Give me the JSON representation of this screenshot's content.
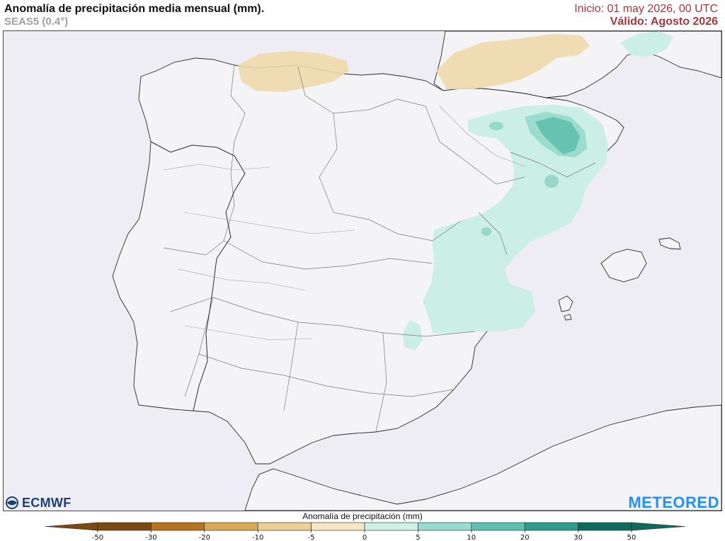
{
  "header": {
    "title": "Anomalía de precipitación media mensual (mm).",
    "subtitle": "SEAS5 (0.4°)",
    "init": "Inicio: 01 may 2026, 00 UTC",
    "valid": "Válido: Agosto 2026"
  },
  "logos": {
    "left": "ECMWF",
    "right": "METEORED"
  },
  "colorbar": {
    "title": "Anomalía de precipitación (mm)",
    "ticks": [
      "-50",
      "-30",
      "-20",
      "-10",
      "-5",
      "0",
      "5",
      "10",
      "20",
      "30",
      "50"
    ],
    "colors": [
      "#7a4a12",
      "#b5731f",
      "#d9aa55",
      "#eccf94",
      "#f6e6c4",
      "#efeff4",
      "#ccefe6",
      "#96ddd0",
      "#5fbfb0",
      "#2f9b8a",
      "#0e6b5e"
    ]
  }
}
